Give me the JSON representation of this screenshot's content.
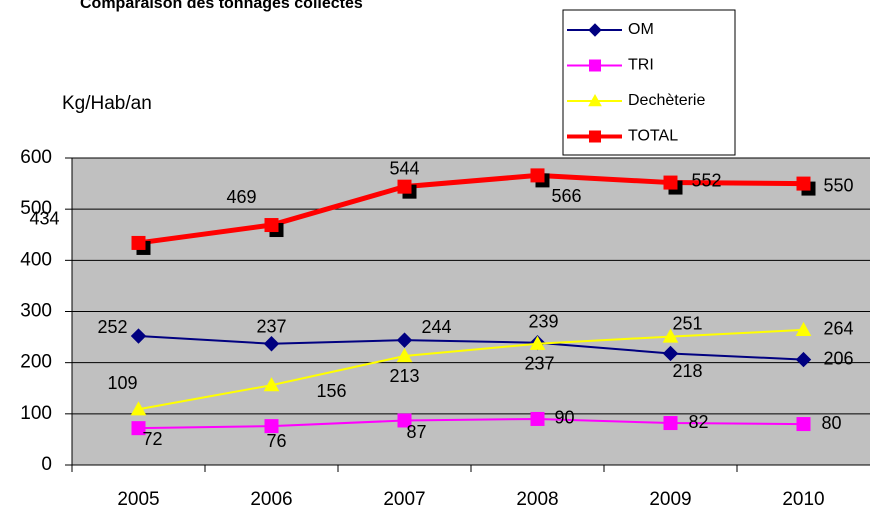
{
  "chart_data": {
    "type": "line",
    "title": "Comparaison des tonnages collectés",
    "y_label": "Kg/Hab/an",
    "categories": [
      "2005",
      "2006",
      "2007",
      "2008",
      "2009",
      "2010"
    ],
    "series": [
      {
        "name": "OM",
        "color": "#000080",
        "marker": "diamond",
        "values": [
          252,
          237,
          244,
          239,
          218,
          206
        ]
      },
      {
        "name": "TRI",
        "color": "#ff00ff",
        "marker": "square",
        "values": [
          72,
          76,
          87,
          90,
          82,
          80
        ]
      },
      {
        "name": "Dechèterie",
        "color": "#ffff00",
        "marker": "triangle",
        "values": [
          109,
          156,
          213,
          237,
          251,
          264
        ]
      },
      {
        "name": "TOTAL",
        "color": "#ff0000",
        "marker": "square",
        "values": [
          434,
          469,
          544,
          566,
          552,
          550
        ]
      }
    ],
    "ylim": [
      0,
      600
    ],
    "yticks": [
      0,
      100,
      200,
      300,
      400,
      500,
      600
    ],
    "grid": true,
    "legend": "top-right"
  }
}
